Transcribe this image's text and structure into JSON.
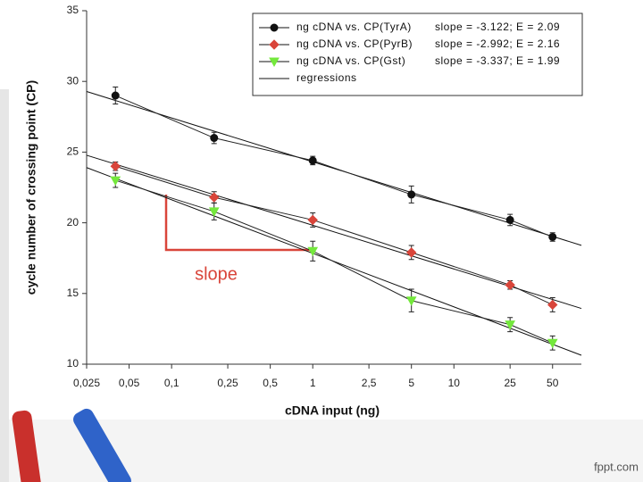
{
  "chart_data": {
    "type": "line",
    "y_label": "cycle number of crossing point (CP)",
    "x_label": "cDNA input (ng)",
    "annotation": "slope",
    "log_x": true,
    "xlim": [
      0.025,
      80
    ],
    "ylim": [
      10,
      35
    ],
    "xticks": [
      {
        "value": 0.025,
        "label": "0,025"
      },
      {
        "value": 0.05,
        "label": "0,05"
      },
      {
        "value": 0.1,
        "label": "0,1"
      },
      {
        "value": 0.25,
        "label": "0,25"
      },
      {
        "value": 0.5,
        "label": "0,5"
      },
      1,
      {
        "value": 2.5,
        "label": "2,5"
      },
      5,
      10,
      25,
      50
    ],
    "yticks": [
      10,
      15,
      20,
      25,
      30,
      35
    ],
    "x": [
      0.04,
      0.2,
      1,
      5,
      25,
      50
    ],
    "series": [
      {
        "name": "ng cDNA vs. CP(TyrA)",
        "stats": "slope = -3.122; E = 2.09",
        "color": "#111111",
        "marker": "circle",
        "values": [
          29,
          26,
          24.4,
          22,
          20.2,
          19
        ],
        "errors": [
          0.6,
          0.4,
          0.3,
          0.6,
          0.4,
          0.3
        ]
      },
      {
        "name": "ng cDNA vs. CP(PyrB)",
        "stats": "slope = -2.992; E = 2.16",
        "color": "#d9453a",
        "marker": "diamond",
        "values": [
          24,
          21.8,
          20.2,
          17.9,
          15.6,
          14.2
        ],
        "errors": [
          0.3,
          0.4,
          0.5,
          0.5,
          0.3,
          0.5
        ]
      },
      {
        "name": "ng cDNA vs. CP(Gst)",
        "stats": "slope = -3.337; E = 1.99",
        "color": "#74e83c",
        "marker": "triangle",
        "values": [
          23,
          20.8,
          18,
          14.5,
          12.8,
          11.5
        ],
        "errors": [
          0.5,
          0.6,
          0.7,
          0.8,
          0.5,
          0.5
        ]
      }
    ],
    "regression_label": "regressions"
  },
  "watermark": "fppt.com"
}
